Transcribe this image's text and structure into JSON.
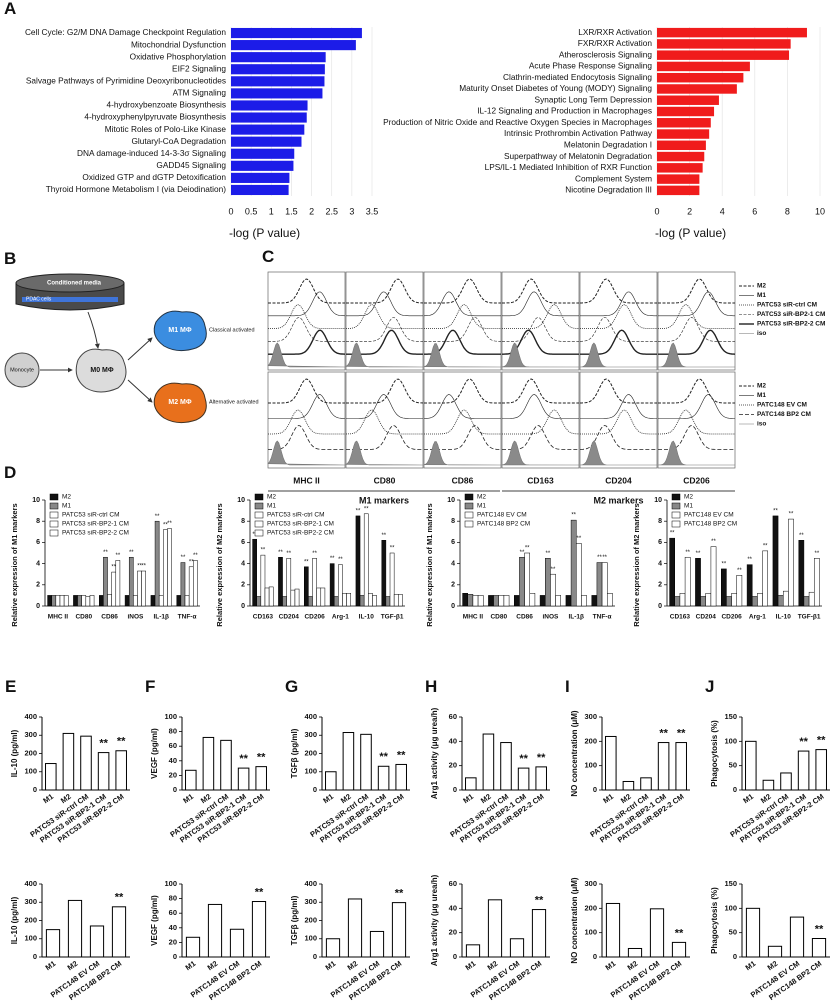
{
  "chart_data": [
    {
      "type": "hbar",
      "panel": "A",
      "categories": [
        "Cell Cycle: G2/M DNA Damage Checkpoint Regulation",
        "Mitochondrial Dysfunction",
        "Oxidative Phosphorylation",
        "EIF2 Signaling",
        "Salvage Pathways of Pyrimidine Deoxyribonucleotides",
        "ATM Signaling",
        "4-hydroxybenzoate Biosynthesis",
        "4-hydroxyphenylpyruvate Biosynthesis",
        "Mitotic Roles of Polo-Like Kinase",
        "Glutaryl-CoA Degradation",
        "DNA damage-induced 14-3-3σ Signaling",
        "GADD45 Signaling",
        "Oxidized GTP and dGTP Detoxification",
        "Thyroid Hormone Metabolism I (via Deiodination)"
      ],
      "values": [
        3.25,
        3.1,
        2.35,
        2.33,
        2.32,
        2.27,
        1.9,
        1.88,
        1.82,
        1.75,
        1.57,
        1.55,
        1.45,
        1.43
      ],
      "color": "#1c1ce8",
      "xlim": [
        0,
        3.5
      ],
      "xticks": [
        0,
        0.5,
        1,
        1.5,
        2,
        2.5,
        3,
        3.5
      ],
      "xlabel": "-log (P value)",
      "grid": true
    },
    {
      "type": "hbar",
      "categories": [
        "LXR/RXR Activation",
        "FXR/RXR Activation",
        "Atherosclerosis Signaling",
        "Acute Phase Response Signaling",
        "Clathrin-mediated Endocytosis Signaling",
        "Maturity Onset Diabetes of Young (MODY) Signaling",
        "Synaptic Long Term Depression",
        "IL-12 Signaling and Production in Macrophages",
        "Production of Nitric Oxide and Reactive Oxygen Species in Macrophages",
        "Intrinsic Prothrombin Activation Pathway",
        "Melatonin Degradation I",
        "Superpathway of Melatonin Degradation",
        "LPS/IL-1 Mediated Inhibition of RXR Function",
        "Complement System",
        "Nicotine Degradation III"
      ],
      "values": [
        9.2,
        8.2,
        8.1,
        5.7,
        5.3,
        4.9,
        3.8,
        3.5,
        3.3,
        3.2,
        3.0,
        2.9,
        2.8,
        2.6,
        2.6
      ],
      "color": "#f01c1c",
      "xlim": [
        0,
        10
      ],
      "xticks": [
        0,
        2,
        4,
        6,
        8,
        10
      ],
      "xlabel": "-log (P value)",
      "grid": true
    },
    {
      "type": "grouped_bar",
      "panel": "D",
      "categories": [
        "MHC II",
        "CD80",
        "CD86",
        "iNOS",
        "IL-1β",
        "TNF-α"
      ],
      "ylabel": "Relative expression of M1 markers",
      "ylim": [
        0,
        10
      ],
      "yticks": [
        0,
        2,
        4,
        6,
        8,
        10
      ],
      "legend": "top-left",
      "series": [
        {
          "name": "M2",
          "color": "#111111",
          "values": [
            1.0,
            1.0,
            1.0,
            1.0,
            1.0,
            1.0
          ],
          "significance": [
            null,
            null,
            null,
            null,
            null,
            null
          ]
        },
        {
          "name": "M1",
          "color": "#888888",
          "values": [
            1.0,
            1.0,
            4.6,
            4.6,
            8.0,
            4.1
          ],
          "significance": [
            null,
            null,
            "**",
            "**",
            "**",
            "**"
          ]
        },
        {
          "name": "PATC53 siR-ctrl CM",
          "color": "#ffffff",
          "values": [
            1.0,
            1.0,
            1.1,
            1.0,
            1.0,
            1.0
          ],
          "significance": [
            null,
            null,
            null,
            null,
            null,
            null
          ]
        },
        {
          "name": "PATC53 siR-BP2-1 CM",
          "color": "#ffffff",
          "values": [
            1.0,
            0.9,
            3.2,
            3.3,
            7.2,
            3.7
          ],
          "significance": [
            null,
            null,
            "**",
            "**",
            "**",
            "**"
          ]
        },
        {
          "name": "PATC53 siR-BP2-2 CM",
          "color": "#ffffff",
          "values": [
            1.0,
            1.0,
            4.3,
            3.3,
            7.3,
            4.3
          ],
          "significance": [
            null,
            null,
            "**",
            "**",
            "**",
            "**"
          ]
        }
      ]
    },
    {
      "type": "grouped_bar",
      "categories": [
        "CD163",
        "CD204",
        "CD206",
        "Arg-1",
        "IL-10",
        "TGF-β1"
      ],
      "ylabel": "Relative expression of M2 markers",
      "ylim": [
        0,
        10
      ],
      "yticks": [
        0,
        2,
        4,
        6,
        8,
        10
      ],
      "legend": "top-left",
      "series": [
        {
          "name": "M2",
          "color": "#111111",
          "values": [
            6.3,
            4.6,
            3.7,
            4.0,
            8.5,
            6.2
          ],
          "significance": [
            "**",
            "**",
            "**",
            "**",
            "**",
            "**"
          ]
        },
        {
          "name": "M1",
          "color": "#888888",
          "values": [
            0.9,
            0.9,
            0.9,
            0.9,
            1.0,
            0.9
          ],
          "significance": [
            null,
            null,
            null,
            null,
            null,
            null
          ]
        },
        {
          "name": "PATC53 siR-ctrl CM",
          "color": "#ffffff",
          "values": [
            4.8,
            4.5,
            4.5,
            3.9,
            8.7,
            5.0
          ],
          "significance": [
            "**",
            "**",
            "**",
            "**",
            "**",
            "**"
          ]
        },
        {
          "name": "PATC53 siR-BP2-1 CM",
          "color": "#ffffff",
          "values": [
            1.7,
            1.5,
            1.7,
            1.2,
            1.2,
            1.1
          ],
          "significance": [
            null,
            null,
            null,
            null,
            null,
            null
          ]
        },
        {
          "name": "PATC53 siR-BP2-2 CM",
          "color": "#ffffff",
          "values": [
            1.8,
            1.6,
            1.7,
            1.2,
            1.0,
            1.1
          ],
          "significance": [
            null,
            null,
            null,
            null,
            null,
            null
          ]
        }
      ]
    },
    {
      "type": "grouped_bar",
      "categories": [
        "MHC II",
        "CD80",
        "CD86",
        "iNOS",
        "IL-1β",
        "TNF-α"
      ],
      "ylabel": "Relative expression of M1 markers",
      "ylim": [
        0,
        10
      ],
      "yticks": [
        0,
        2,
        4,
        6,
        8,
        10
      ],
      "legend": "top-left",
      "series": [
        {
          "name": "M2",
          "color": "#111111",
          "values": [
            1.2,
            1.0,
            1.0,
            1.0,
            1.0,
            1.0
          ],
          "significance": [
            null,
            null,
            null,
            null,
            null,
            null
          ]
        },
        {
          "name": "M1",
          "color": "#888888",
          "values": [
            1.1,
            1.0,
            4.6,
            4.5,
            8.1,
            4.1
          ],
          "significance": [
            null,
            null,
            "**",
            "**",
            "**",
            "**"
          ]
        },
        {
          "name": "PATC148 EV CM",
          "color": "#ffffff",
          "values": [
            1.0,
            1.0,
            5.0,
            3.0,
            5.9,
            4.1
          ],
          "significance": [
            null,
            null,
            "**",
            "**",
            "**",
            "**"
          ]
        },
        {
          "name": "PATC148 BP2 CM",
          "color": "#ffffff",
          "values": [
            1.0,
            1.0,
            1.2,
            1.0,
            1.0,
            1.2
          ],
          "significance": [
            null,
            null,
            null,
            null,
            null,
            null
          ]
        }
      ]
    },
    {
      "type": "grouped_bar",
      "categories": [
        "CD163",
        "CD204",
        "CD206",
        "Arg-1",
        "IL-10",
        "TGF-β1"
      ],
      "ylabel": "Relative expression of M2 markers",
      "ylim": [
        0,
        10
      ],
      "yticks": [
        0,
        2,
        4,
        6,
        8,
        10
      ],
      "legend": "top-left",
      "series": [
        {
          "name": "M2",
          "color": "#111111",
          "values": [
            6.4,
            4.5,
            3.5,
            3.9,
            8.5,
            6.2
          ],
          "significance": [
            "**",
            "**",
            "**",
            "**",
            "**",
            "**"
          ]
        },
        {
          "name": "M1",
          "color": "#888888",
          "values": [
            0.9,
            0.9,
            0.9,
            0.9,
            1.0,
            0.9
          ],
          "significance": [
            null,
            null,
            null,
            null,
            null,
            null
          ]
        },
        {
          "name": "PATC148 EV CM",
          "color": "#ffffff",
          "values": [
            1.2,
            1.2,
            1.2,
            1.2,
            1.4,
            1.3
          ],
          "significance": [
            null,
            null,
            null,
            null,
            null,
            null
          ]
        },
        {
          "name": "PATC148 BP2 CM",
          "color": "#ffffff",
          "values": [
            4.6,
            5.6,
            2.9,
            5.2,
            8.2,
            4.5
          ],
          "significance": [
            "**",
            "**",
            "**",
            "**",
            "**",
            "**"
          ]
        }
      ]
    },
    {
      "type": "bar",
      "panel": "E",
      "categories": [
        "M1",
        "M2",
        "PATC53 siR-ctrl CM",
        "PATC53 siR-BP2-1 CM",
        "PATC53 siR-BP2-2 CM"
      ],
      "values": [
        145,
        310,
        295,
        205,
        215
      ],
      "significance": [
        null,
        null,
        null,
        "**",
        "**"
      ],
      "color": "#ffffff",
      "ylabel": "IL-10 (pg/ml)",
      "ylim": [
        0,
        400
      ],
      "yticks": [
        0,
        100,
        200,
        300,
        400
      ]
    },
    {
      "type": "bar",
      "categories": [
        "M1",
        "M2",
        "PATC148 EV CM",
        "PATC148 BP2 CM"
      ],
      "values": [
        150,
        310,
        170,
        275
      ],
      "significance": [
        null,
        null,
        null,
        "**"
      ],
      "color": "#ffffff",
      "ylabel": "IL-10 (pg/ml)",
      "ylim": [
        0,
        400
      ],
      "yticks": [
        0,
        100,
        200,
        300,
        400
      ]
    },
    {
      "type": "bar",
      "panel": "F",
      "categories": [
        "M1",
        "M2",
        "PATC53 siR-ctrl CM",
        "PATC53 siR-BP2-1 CM",
        "PATC53 siR-BP2-2 CM"
      ],
      "values": [
        27,
        72,
        68,
        30,
        32
      ],
      "significance": [
        null,
        null,
        null,
        "**",
        "**"
      ],
      "color": "#ffffff",
      "ylabel": "VEGF (pg/ml)",
      "ylim": [
        0,
        100
      ],
      "yticks": [
        0,
        20,
        40,
        60,
        80,
        100
      ]
    },
    {
      "type": "bar",
      "categories": [
        "M1",
        "M2",
        "PATC148 EV CM",
        "PATC148 BP2 CM"
      ],
      "values": [
        27,
        72,
        38,
        76
      ],
      "significance": [
        null,
        null,
        null,
        "**"
      ],
      "color": "#ffffff",
      "ylabel": "VEGF (pg/ml)",
      "ylim": [
        0,
        100
      ],
      "yticks": [
        0,
        20,
        40,
        60,
        80,
        100
      ]
    },
    {
      "type": "bar",
      "panel": "G",
      "categories": [
        "M1",
        "M2",
        "PATC53 siR-ctrl CM",
        "PATC53 siR-BP2-1 CM",
        "PATC53 siR-BP2-2 CM"
      ],
      "values": [
        100,
        315,
        305,
        130,
        140
      ],
      "significance": [
        null,
        null,
        null,
        "**",
        "**"
      ],
      "color": "#ffffff",
      "ylabel": "TGFβ (pg/ml)",
      "ylim": [
        0,
        400
      ],
      "yticks": [
        0,
        100,
        200,
        300,
        400
      ]
    },
    {
      "type": "bar",
      "categories": [
        "M1",
        "M2",
        "PATC148 EV CM",
        "PATC148 BP2 CM"
      ],
      "values": [
        100,
        318,
        140,
        298
      ],
      "significance": [
        null,
        null,
        null,
        "**"
      ],
      "color": "#ffffff",
      "ylabel": "TGFβ (pg/ml)",
      "ylim": [
        0,
        400
      ],
      "yticks": [
        0,
        100,
        200,
        300,
        400
      ]
    },
    {
      "type": "bar",
      "panel": "H",
      "categories": [
        "M1",
        "M2",
        "PATC53 siR-ctrl CM",
        "PATC53 siR-BP2-1 CM",
        "PATC53 siR-BP2-2 CM"
      ],
      "values": [
        10,
        46,
        39,
        18,
        19
      ],
      "significance": [
        null,
        null,
        null,
        "**",
        "**"
      ],
      "color": "#ffffff",
      "ylabel": "Arg1 activity (μg urea/h)",
      "ylim": [
        0,
        60
      ],
      "yticks": [
        0,
        20,
        40,
        60
      ]
    },
    {
      "type": "bar",
      "categories": [
        "M1",
        "M2",
        "PATC148 EV CM",
        "PATC148 BP2 CM"
      ],
      "values": [
        10,
        47,
        15,
        39
      ],
      "significance": [
        null,
        null,
        null,
        "**"
      ],
      "color": "#ffffff",
      "ylabel": "Arg1 activity (μg urea/h)",
      "ylim": [
        0,
        60
      ],
      "yticks": [
        0,
        20,
        40,
        60
      ]
    },
    {
      "type": "bar",
      "panel": "I",
      "categories": [
        "M1",
        "M2",
        "PATC53 siR-ctrl CM",
        "PATC53 siR-BP2-1 CM",
        "PATC53 siR-BP2-2 CM"
      ],
      "values": [
        220,
        35,
        50,
        195,
        195
      ],
      "significance": [
        null,
        null,
        null,
        "**",
        "**"
      ],
      "color": "#ffffff",
      "ylabel": "NO concentration (μM)",
      "ylim": [
        0,
        300
      ],
      "yticks": [
        0,
        100,
        200,
        300
      ]
    },
    {
      "type": "bar",
      "categories": [
        "M1",
        "M2",
        "PATC148 EV CM",
        "PATC148 BP2 CM"
      ],
      "values": [
        220,
        35,
        198,
        60
      ],
      "significance": [
        null,
        null,
        null,
        "**"
      ],
      "color": "#ffffff",
      "ylabel": "NO concentration (μM)",
      "ylim": [
        0,
        300
      ],
      "yticks": [
        0,
        100,
        200,
        300
      ]
    },
    {
      "type": "bar",
      "panel": "J",
      "categories": [
        "M1",
        "M2",
        "PATC53 siR-ctrl CM",
        "PATC53 siR-BP2-1 CM",
        "PATC53 siR-BP2-2 CM"
      ],
      "values": [
        100,
        20,
        35,
        80,
        83
      ],
      "significance": [
        null,
        null,
        null,
        "**",
        "**"
      ],
      "color": "#ffffff",
      "ylabel": "Phagocytosis (%)",
      "ylim": [
        0,
        150
      ],
      "yticks": [
        0,
        50,
        100,
        150
      ]
    },
    {
      "type": "bar",
      "categories": [
        "M1",
        "M2",
        "PATC148 EV CM",
        "PATC148 BP2 CM"
      ],
      "values": [
        100,
        22,
        82,
        38
      ],
      "significance": [
        null,
        null,
        null,
        "**"
      ],
      "color": "#ffffff",
      "ylabel": "Phagocytosis (%)",
      "ylim": [
        0,
        150
      ],
      "yticks": [
        0,
        50,
        100,
        150
      ]
    }
  ],
  "diagram": {
    "panel": "B",
    "dish": "Conditioned media",
    "cells": "PDAC cells",
    "monocyte": "Monocyte",
    "m0": "M0 MΦ",
    "m1": "M1 MΦ",
    "m1_note": "Classical activated",
    "m2": "M2 MΦ",
    "m2_note": "Alternative activated"
  },
  "flow": {
    "panel": "C",
    "rows": [
      {
        "legend": [
          "M2",
          "M1",
          "PATC53 siR-ctrl CM",
          "PATC53 siR-BP2-1 CM",
          "PATC53 siR-BP2-2 CM",
          "iso"
        ]
      },
      {
        "legend": [
          "M2",
          "M1",
          "PATC148 EV CM",
          "PATC148 BP2 CM",
          "iso"
        ]
      }
    ],
    "markers": [
      "MHC II",
      "CD80",
      "CD86",
      "CD163",
      "CD204",
      "CD206"
    ],
    "groups": [
      "M1 markers",
      "M2 markers"
    ]
  }
}
